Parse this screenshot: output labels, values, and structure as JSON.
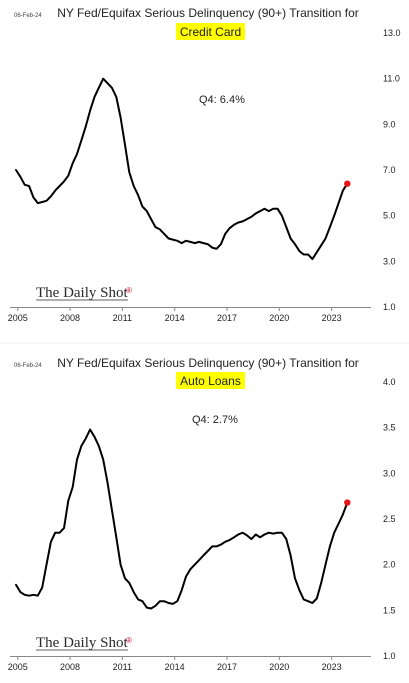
{
  "charts": [
    {
      "date": "06-Feb-24",
      "title": "NY Fed/Equifax Serious Delinquency (90+) Transition for",
      "subtitle": "Credit Card",
      "annotation": "Q4:   6.4%",
      "brand": "The Daily Shot",
      "highlight_color": "#ffff00",
      "line_color": "#000000",
      "end_marker_color": "#e8141a"
    },
    {
      "date": "06-Feb-24",
      "title": "NY Fed/Equifax Serious Delinquency (90+) Transition for",
      "subtitle": "Auto Loans",
      "annotation": "Q4:   2.7%",
      "brand": "The Daily Shot",
      "highlight_color": "#ffff00",
      "line_color": "#000000",
      "end_marker_color": "#e8141a"
    }
  ],
  "chart_data": [
    {
      "type": "line",
      "title": "NY Fed/Equifax Serious Delinquency (90+) Transition for",
      "subtitle": "Credit Card",
      "annotation": "Q4:   6.4%",
      "xlim": [
        2004.9,
        2024.8
      ],
      "ylim": [
        1.0,
        13.0
      ],
      "x_ticks": [
        2005,
        2008,
        2011,
        2014,
        2017,
        2020,
        2023
      ],
      "x_tick_labels": [
        "2005",
        "2008",
        "2011",
        "2014",
        "2017",
        "2020",
        "2023"
      ],
      "y_ticks": [
        1.0,
        3.0,
        5.0,
        7.0,
        9.0,
        11.0,
        13.0
      ],
      "y_tick_labels": [
        "1.0",
        "3.0",
        "5.0",
        "7.0",
        "9.0",
        "11.0",
        "13.0"
      ],
      "y_axis_side": "right",
      "grid": false,
      "series": [
        {
          "x": [
            2004.9,
            2005.15,
            2005.4,
            2005.65,
            2005.9,
            2006.15,
            2006.4,
            2006.65,
            2006.9,
            2007.15,
            2007.4,
            2007.65,
            2007.9,
            2008.15,
            2008.4,
            2008.65,
            2008.9,
            2009.15,
            2009.4,
            2009.65,
            2009.9,
            2010.15,
            2010.4,
            2010.65,
            2010.9,
            2011.15,
            2011.4,
            2011.65,
            2011.9,
            2012.15,
            2012.4,
            2012.65,
            2012.9,
            2013.15,
            2013.4,
            2013.65,
            2013.9,
            2014.15,
            2014.4,
            2014.65,
            2014.9,
            2015.15,
            2015.4,
            2015.65,
            2015.9,
            2016.15,
            2016.4,
            2016.65,
            2016.9,
            2017.15,
            2017.4,
            2017.65,
            2017.9,
            2018.15,
            2018.4,
            2018.65,
            2018.9,
            2019.15,
            2019.4,
            2019.65,
            2019.9,
            2020.15,
            2020.4,
            2020.65,
            2020.9,
            2021.15,
            2021.4,
            2021.65,
            2021.9,
            2022.15,
            2022.4,
            2022.65,
            2022.9,
            2023.15,
            2023.4,
            2023.65,
            2023.9
          ],
          "y": [
            7.0,
            6.7,
            6.35,
            6.3,
            5.8,
            5.55,
            5.6,
            5.65,
            5.85,
            6.1,
            6.3,
            6.5,
            6.75,
            7.3,
            7.7,
            8.3,
            8.9,
            9.6,
            10.2,
            10.6,
            11.0,
            10.8,
            10.6,
            10.2,
            9.3,
            8.1,
            6.9,
            6.3,
            5.9,
            5.4,
            5.2,
            4.85,
            4.5,
            4.4,
            4.2,
            4.0,
            3.95,
            3.9,
            3.8,
            3.9,
            3.85,
            3.8,
            3.85,
            3.8,
            3.75,
            3.6,
            3.55,
            3.75,
            4.2,
            4.45,
            4.6,
            4.7,
            4.75,
            4.85,
            4.95,
            5.1,
            5.2,
            5.3,
            5.2,
            5.3,
            5.3,
            5.0,
            4.5,
            4.0,
            3.75,
            3.45,
            3.3,
            3.3,
            3.1,
            3.4,
            3.7,
            4.0,
            4.5,
            5.0,
            5.55,
            6.1,
            6.4
          ]
        }
      ]
    },
    {
      "type": "line",
      "title": "NY Fed/Equifax Serious Delinquency (90+) Transition for",
      "subtitle": "Auto Loans",
      "annotation": "Q4:   2.7%",
      "xlim": [
        2004.9,
        2024.8
      ],
      "ylim": [
        1.0,
        4.0
      ],
      "x_ticks": [
        2005,
        2008,
        2011,
        2014,
        2017,
        2020,
        2023
      ],
      "x_tick_labels": [
        "2005",
        "2008",
        "2011",
        "2014",
        "2017",
        "2020",
        "2023"
      ],
      "y_ticks": [
        1.0,
        1.5,
        2.0,
        2.5,
        3.0,
        3.5,
        4.0
      ],
      "y_tick_labels": [
        "1.0",
        "1.5",
        "2.0",
        "2.5",
        "3.0",
        "3.5",
        "4.0"
      ],
      "y_axis_side": "right",
      "grid": false,
      "series": [
        {
          "x": [
            2004.9,
            2005.15,
            2005.4,
            2005.65,
            2005.9,
            2006.15,
            2006.4,
            2006.65,
            2006.9,
            2007.15,
            2007.4,
            2007.65,
            2007.9,
            2008.15,
            2008.4,
            2008.65,
            2008.9,
            2009.15,
            2009.4,
            2009.65,
            2009.9,
            2010.15,
            2010.4,
            2010.65,
            2010.9,
            2011.15,
            2011.4,
            2011.65,
            2011.9,
            2012.15,
            2012.4,
            2012.65,
            2012.9,
            2013.15,
            2013.4,
            2013.65,
            2013.9,
            2014.15,
            2014.4,
            2014.65,
            2014.9,
            2015.15,
            2015.4,
            2015.65,
            2015.9,
            2016.15,
            2016.4,
            2016.65,
            2016.9,
            2017.15,
            2017.4,
            2017.65,
            2017.9,
            2018.15,
            2018.4,
            2018.65,
            2018.9,
            2019.15,
            2019.4,
            2019.65,
            2019.9,
            2020.15,
            2020.4,
            2020.65,
            2020.9,
            2021.15,
            2021.4,
            2021.65,
            2021.9,
            2022.15,
            2022.4,
            2022.65,
            2022.9,
            2023.15,
            2023.4,
            2023.65,
            2023.9
          ],
          "y": [
            1.78,
            1.7,
            1.67,
            1.66,
            1.67,
            1.66,
            1.75,
            2.0,
            2.25,
            2.35,
            2.35,
            2.4,
            2.7,
            2.85,
            3.15,
            3.3,
            3.38,
            3.48,
            3.4,
            3.3,
            3.15,
            2.9,
            2.6,
            2.3,
            2.0,
            1.85,
            1.8,
            1.7,
            1.62,
            1.6,
            1.53,
            1.52,
            1.55,
            1.6,
            1.6,
            1.58,
            1.57,
            1.6,
            1.72,
            1.87,
            1.95,
            2.0,
            2.05,
            2.1,
            2.15,
            2.2,
            2.2,
            2.22,
            2.25,
            2.27,
            2.3,
            2.33,
            2.35,
            2.32,
            2.28,
            2.33,
            2.3,
            2.33,
            2.35,
            2.34,
            2.35,
            2.35,
            2.28,
            2.1,
            1.85,
            1.72,
            1.62,
            1.6,
            1.58,
            1.63,
            1.8,
            2.0,
            2.2,
            2.35,
            2.45,
            2.55,
            2.68
          ]
        }
      ]
    }
  ]
}
